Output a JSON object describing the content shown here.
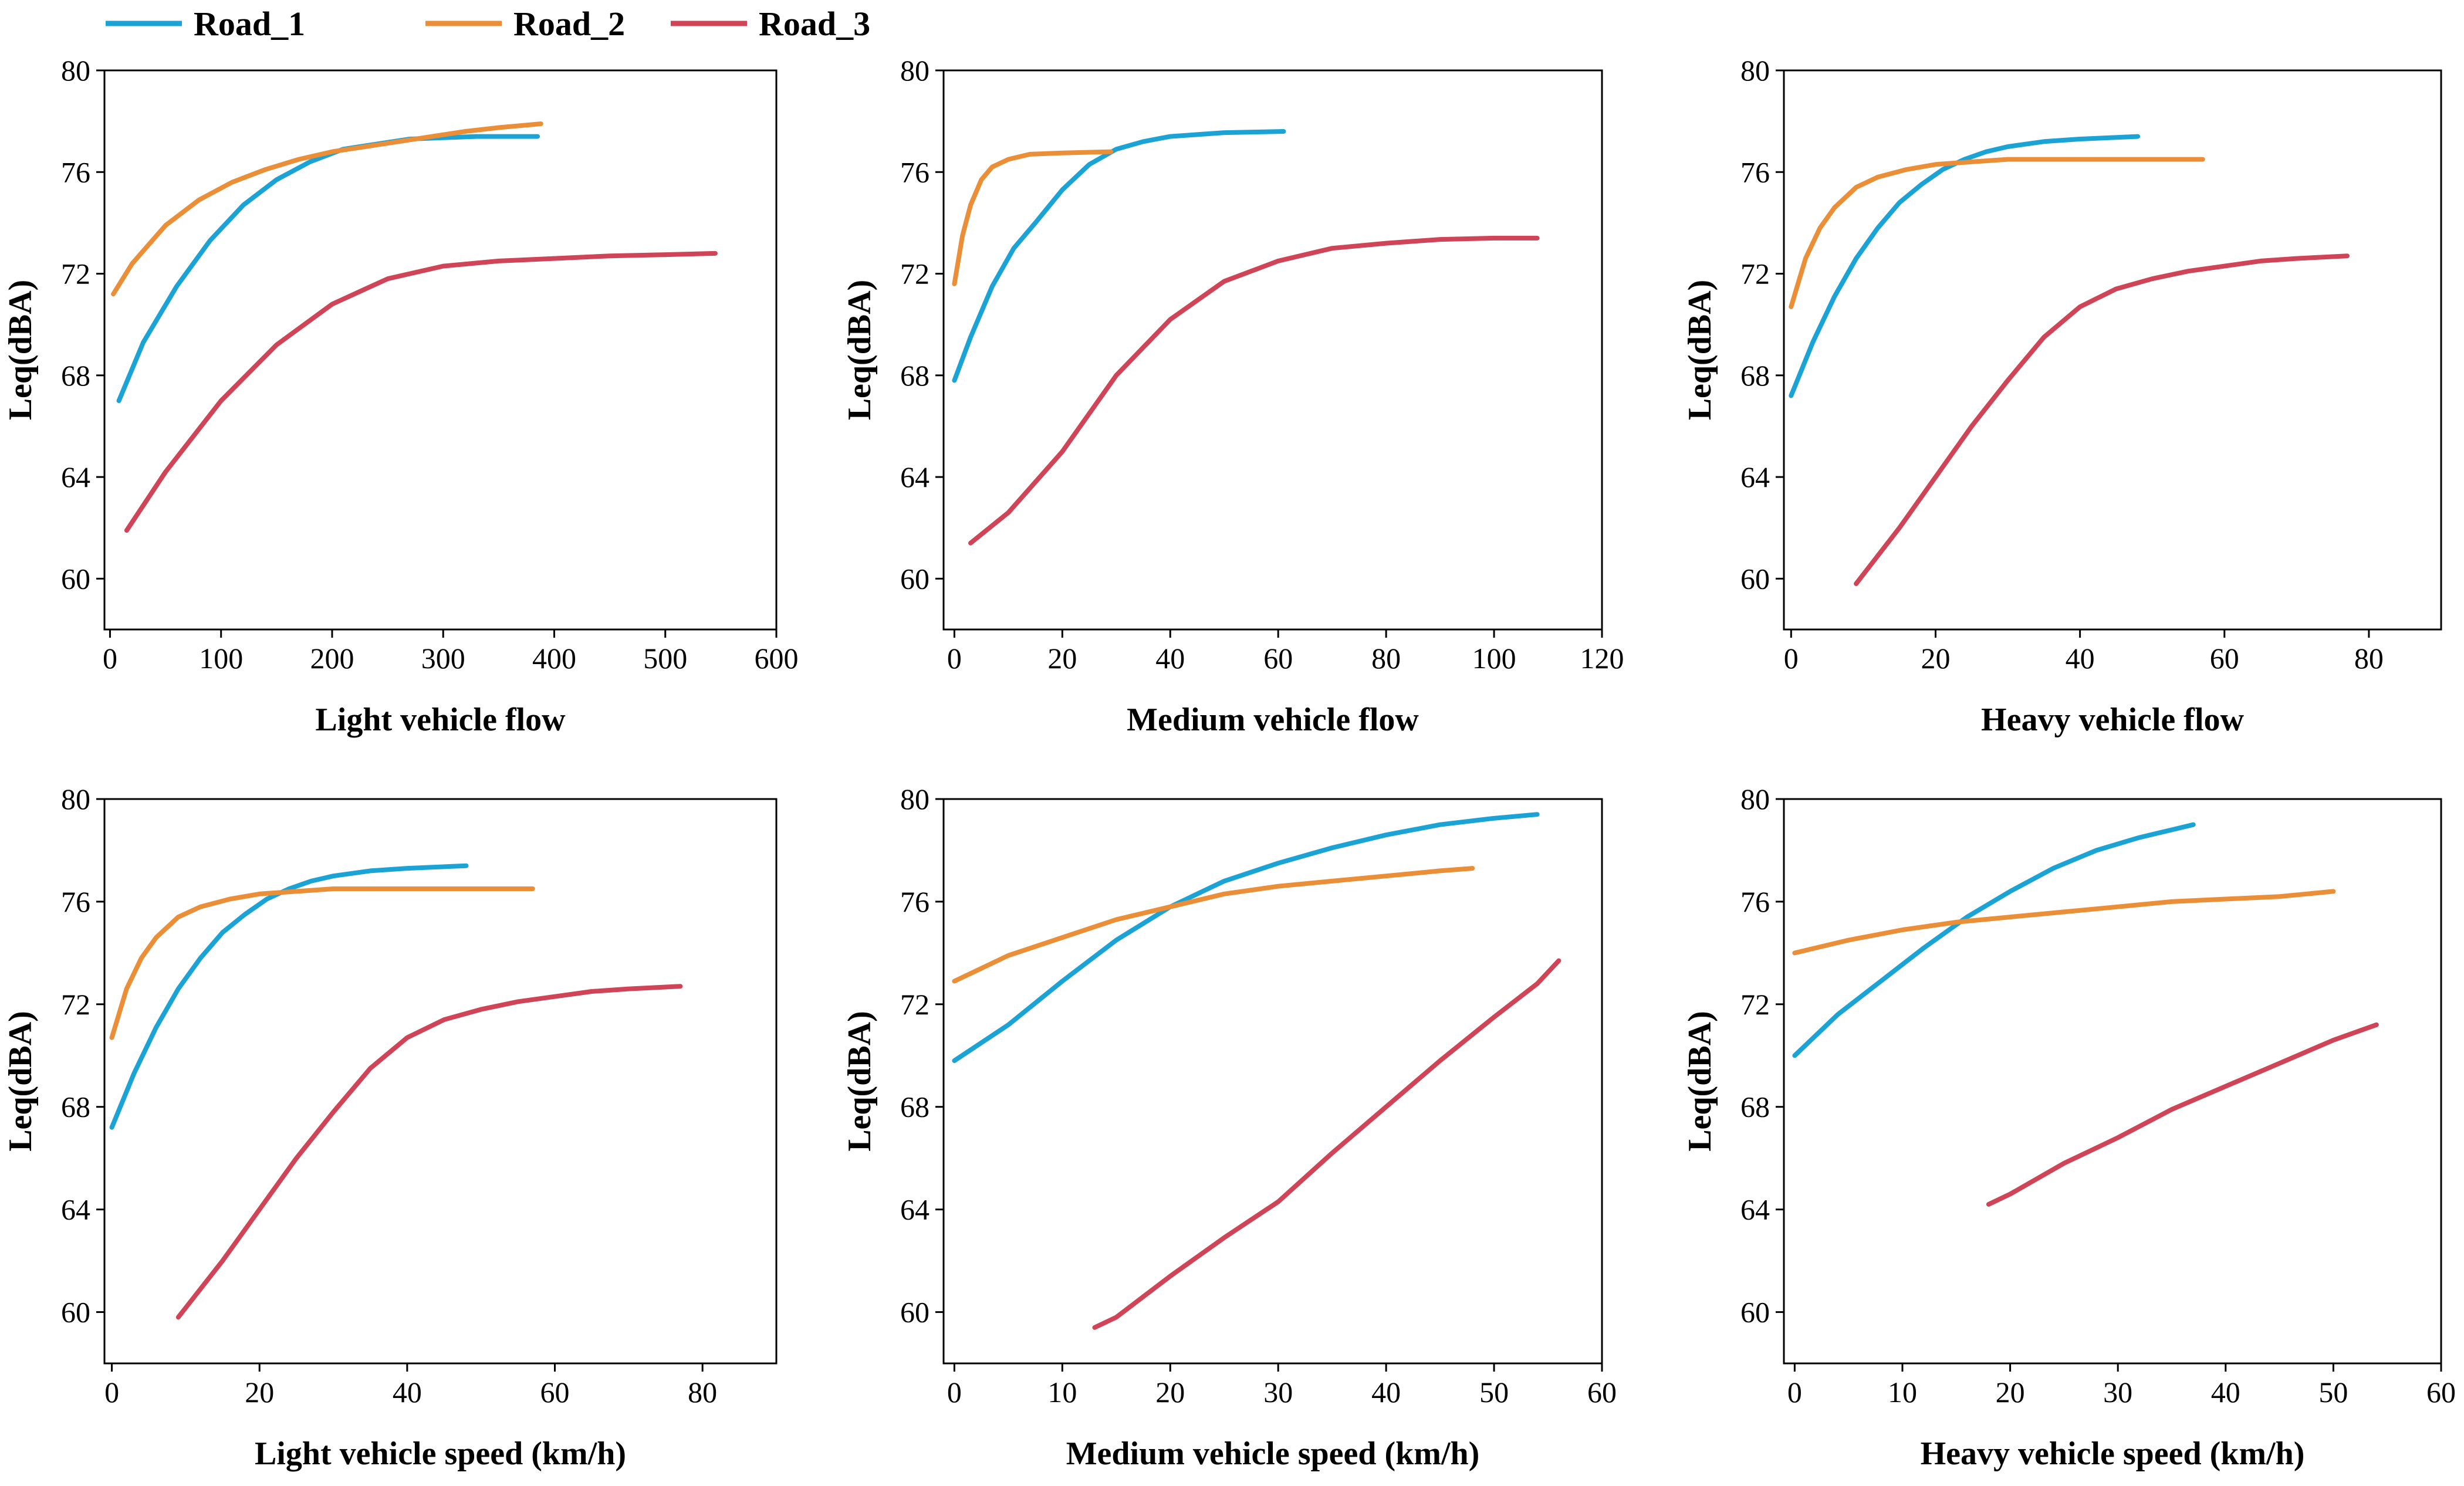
{
  "colors": {
    "Road_1": "#1AA3D4",
    "Road_2": "#EA8F38",
    "Road_3": "#CF4456"
  },
  "legend": [
    "Road_1",
    "Road_2",
    "Road_3"
  ],
  "chart_data": [
    {
      "type": "line",
      "title": "",
      "xlabel": "Light vehicle flow",
      "ylabel": "Leq(dBA)",
      "xlim": [
        -5,
        600
      ],
      "ylim": [
        58,
        80
      ],
      "xticks": [
        0,
        100,
        200,
        300,
        400,
        500,
        600
      ],
      "yticks": [
        60,
        64,
        68,
        72,
        76,
        80
      ],
      "series": [
        {
          "name": "Road_1",
          "x": [
            8,
            30,
            60,
            90,
            120,
            150,
            180,
            210,
            240,
            270,
            300,
            330,
            360,
            385
          ],
          "y": [
            67.0,
            69.3,
            71.5,
            73.3,
            74.7,
            75.7,
            76.4,
            76.9,
            77.1,
            77.3,
            77.35,
            77.4,
            77.4,
            77.4
          ]
        },
        {
          "name": "Road_2",
          "x": [
            3,
            20,
            50,
            80,
            110,
            140,
            170,
            200,
            230,
            260,
            290,
            320,
            350,
            388
          ],
          "y": [
            71.2,
            72.4,
            73.9,
            74.9,
            75.6,
            76.1,
            76.5,
            76.8,
            77.0,
            77.2,
            77.4,
            77.6,
            77.75,
            77.9
          ]
        },
        {
          "name": "Road_3",
          "x": [
            15,
            50,
            100,
            150,
            200,
            250,
            300,
            350,
            400,
            450,
            500,
            545
          ],
          "y": [
            61.9,
            64.2,
            67.0,
            69.2,
            70.8,
            71.8,
            72.3,
            72.5,
            72.6,
            72.7,
            72.75,
            72.8
          ]
        }
      ]
    },
    {
      "type": "line",
      "title": "",
      "xlabel": "Medium vehicle flow",
      "ylabel": "Leq(dBA)",
      "xlim": [
        -2,
        120
      ],
      "ylim": [
        58,
        80
      ],
      "xticks": [
        0,
        20,
        40,
        60,
        80,
        100,
        120
      ],
      "yticks": [
        60,
        64,
        68,
        72,
        76,
        80
      ],
      "series": [
        {
          "name": "Road_1",
          "x": [
            0,
            3,
            7,
            11,
            15,
            20,
            25,
            30,
            35,
            40,
            50,
            61
          ],
          "y": [
            67.8,
            69.5,
            71.5,
            73.0,
            74.0,
            75.3,
            76.3,
            76.9,
            77.2,
            77.4,
            77.55,
            77.6
          ]
        },
        {
          "name": "Road_2",
          "x": [
            0,
            1.5,
            3,
            5,
            7,
            10,
            14,
            20,
            29
          ],
          "y": [
            71.6,
            73.5,
            74.7,
            75.7,
            76.2,
            76.5,
            76.7,
            76.75,
            76.8
          ]
        },
        {
          "name": "Road_3",
          "x": [
            3,
            10,
            20,
            30,
            40,
            50,
            60,
            70,
            80,
            90,
            100,
            108
          ],
          "y": [
            61.4,
            62.6,
            65.0,
            68.0,
            70.2,
            71.7,
            72.5,
            73.0,
            73.2,
            73.35,
            73.4,
            73.4
          ]
        }
      ]
    },
    {
      "type": "line",
      "title": "",
      "xlabel": "Heavy vehicle flow",
      "ylabel": "Leq(dBA)",
      "xlim": [
        -1,
        90
      ],
      "ylim": [
        58,
        80
      ],
      "xticks": [
        0,
        20,
        40,
        60,
        80
      ],
      "yticks": [
        60,
        64,
        68,
        72,
        76,
        80
      ],
      "series": [
        {
          "name": "Road_1",
          "x": [
            0,
            3,
            6,
            9,
            12,
            15,
            18,
            21,
            24,
            27,
            30,
            35,
            40,
            48
          ],
          "y": [
            67.2,
            69.3,
            71.1,
            72.6,
            73.8,
            74.8,
            75.5,
            76.1,
            76.5,
            76.8,
            77.0,
            77.2,
            77.3,
            77.4
          ]
        },
        {
          "name": "Road_2",
          "x": [
            0,
            2,
            4,
            6,
            9,
            12,
            16,
            20,
            25,
            30,
            40,
            50,
            57
          ],
          "y": [
            70.7,
            72.6,
            73.8,
            74.6,
            75.4,
            75.8,
            76.1,
            76.3,
            76.4,
            76.5,
            76.5,
            76.5,
            76.5
          ]
        },
        {
          "name": "Road_3",
          "x": [
            9,
            15,
            20,
            25,
            30,
            35,
            40,
            45,
            50,
            55,
            60,
            65,
            70,
            77
          ],
          "y": [
            59.8,
            62.0,
            64.0,
            66.0,
            67.8,
            69.5,
            70.7,
            71.4,
            71.8,
            72.1,
            72.3,
            72.5,
            72.6,
            72.7
          ]
        }
      ]
    },
    {
      "type": "line",
      "title": "",
      "xlabel": "Light vehicle speed (km/h)",
      "ylabel": "Leq(dBA)",
      "xlim": [
        -1,
        90
      ],
      "ylim": [
        58,
        80
      ],
      "xticks": [
        0,
        20,
        40,
        60,
        80
      ],
      "yticks": [
        60,
        64,
        68,
        72,
        76,
        80
      ],
      "series": [
        {
          "name": "Road_1",
          "x": [
            0,
            3,
            6,
            9,
            12,
            15,
            18,
            21,
            24,
            27,
            30,
            35,
            40,
            48
          ],
          "y": [
            67.2,
            69.3,
            71.1,
            72.6,
            73.8,
            74.8,
            75.5,
            76.1,
            76.5,
            76.8,
            77.0,
            77.2,
            77.3,
            77.4
          ]
        },
        {
          "name": "Road_2",
          "x": [
            0,
            2,
            4,
            6,
            9,
            12,
            16,
            20,
            25,
            30,
            40,
            50,
            57
          ],
          "y": [
            70.7,
            72.6,
            73.8,
            74.6,
            75.4,
            75.8,
            76.1,
            76.3,
            76.4,
            76.5,
            76.5,
            76.5,
            76.5
          ]
        },
        {
          "name": "Road_3",
          "x": [
            9,
            15,
            20,
            25,
            30,
            35,
            40,
            45,
            50,
            55,
            60,
            65,
            70,
            77
          ],
          "y": [
            59.8,
            62.0,
            64.0,
            66.0,
            67.8,
            69.5,
            70.7,
            71.4,
            71.8,
            72.1,
            72.3,
            72.5,
            72.6,
            72.7
          ]
        }
      ]
    },
    {
      "type": "line",
      "title": "",
      "xlabel": "Medium vehicle speed (km/h)",
      "ylabel": "Leq(dBA)",
      "xlim": [
        -1,
        60
      ],
      "ylim": [
        58,
        80
      ],
      "xticks": [
        0,
        10,
        20,
        30,
        40,
        50,
        60
      ],
      "yticks": [
        60,
        64,
        68,
        72,
        76,
        80
      ],
      "series": [
        {
          "name": "Road_1",
          "x": [
            0,
            5,
            10,
            15,
            20,
            25,
            30,
            35,
            40,
            45,
            50,
            54
          ],
          "y": [
            69.8,
            71.2,
            72.9,
            74.5,
            75.8,
            76.8,
            77.5,
            78.1,
            78.6,
            79.0,
            79.25,
            79.4
          ]
        },
        {
          "name": "Road_2",
          "x": [
            0,
            5,
            10,
            15,
            20,
            25,
            30,
            35,
            40,
            45,
            48
          ],
          "y": [
            72.9,
            73.9,
            74.6,
            75.3,
            75.8,
            76.3,
            76.6,
            76.8,
            77.0,
            77.2,
            77.3
          ]
        },
        {
          "name": "Road_3",
          "x": [
            13,
            15,
            20,
            25,
            30,
            35,
            40,
            45,
            50,
            54,
            56
          ],
          "y": [
            59.4,
            59.8,
            61.4,
            62.9,
            64.3,
            66.2,
            68.0,
            69.8,
            71.5,
            72.8,
            73.7
          ]
        }
      ]
    },
    {
      "type": "line",
      "title": "",
      "xlabel": "Heavy vehicle speed (km/h)",
      "ylabel": "Leq(dBA)",
      "xlim": [
        -1,
        60
      ],
      "ylim": [
        58,
        80
      ],
      "xticks": [
        0,
        10,
        20,
        30,
        40,
        50,
        60
      ],
      "yticks": [
        60,
        64,
        68,
        72,
        76,
        80
      ],
      "series": [
        {
          "name": "Road_1",
          "x": [
            0,
            4,
            8,
            12,
            16,
            20,
            24,
            28,
            32,
            35,
            37
          ],
          "y": [
            70.0,
            71.6,
            72.9,
            74.2,
            75.4,
            76.4,
            77.3,
            78.0,
            78.5,
            78.8,
            79.0
          ]
        },
        {
          "name": "Road_2",
          "x": [
            0,
            5,
            10,
            15,
            20,
            25,
            30,
            35,
            40,
            45,
            50
          ],
          "y": [
            74.0,
            74.5,
            74.9,
            75.2,
            75.4,
            75.6,
            75.8,
            76.0,
            76.1,
            76.2,
            76.4
          ]
        },
        {
          "name": "Road_3",
          "x": [
            18,
            20,
            25,
            30,
            35,
            40,
            45,
            50,
            54
          ],
          "y": [
            64.2,
            64.6,
            65.8,
            66.8,
            67.9,
            68.8,
            69.7,
            70.6,
            71.2
          ]
        }
      ]
    }
  ]
}
